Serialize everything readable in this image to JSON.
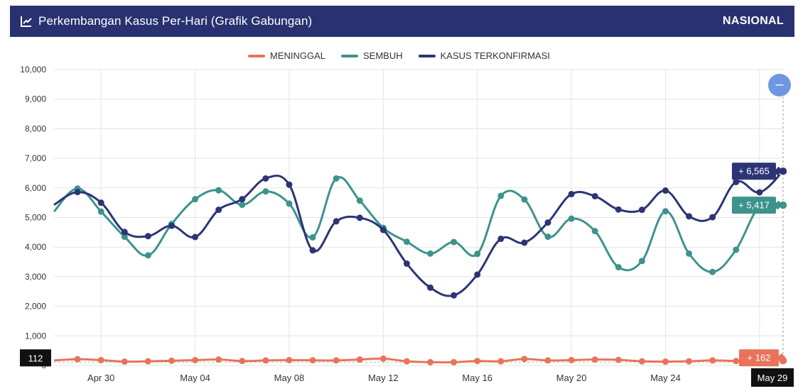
{
  "header": {
    "title": "Perkembangan Kasus Per-Hari (Grafik Gabungan)",
    "region": "NASIONAL",
    "icon": "line-chart-icon"
  },
  "zoom_button": {
    "icon": "minus-icon",
    "label": "–"
  },
  "colors": {
    "header_bg": "#283270",
    "meninggal": "#e8735a",
    "sembuh": "#3d938c",
    "kasus": "#2d3475",
    "zoom": "#6f96e3"
  },
  "chart_data": {
    "type": "line",
    "legend_position": "top-center",
    "grid": true,
    "ylim": [
      0,
      10000
    ],
    "y_ticks": [
      "0",
      "1,000",
      "2,000",
      "3,000",
      "4,000",
      "5,000",
      "6,000",
      "7,000",
      "8,000",
      "9,000",
      "10,000"
    ],
    "x_tick_labels": [
      "Apr 30",
      "May 04",
      "May 08",
      "May 12",
      "May 16",
      "May 20",
      "May 24",
      "May"
    ],
    "x_tick_dates": [
      "2021-04-30",
      "2021-05-04",
      "2021-05-08",
      "2021-05-12",
      "2021-05-16",
      "2021-05-20",
      "2021-05-24",
      "2021-05-28"
    ],
    "dates": [
      "2021-04-28",
      "2021-04-29",
      "2021-04-30",
      "2021-05-01",
      "2021-05-02",
      "2021-05-03",
      "2021-05-04",
      "2021-05-05",
      "2021-05-06",
      "2021-05-07",
      "2021-05-08",
      "2021-05-09",
      "2021-05-10",
      "2021-05-11",
      "2021-05-12",
      "2021-05-13",
      "2021-05-14",
      "2021-05-15",
      "2021-05-16",
      "2021-05-17",
      "2021-05-18",
      "2021-05-19",
      "2021-05-20",
      "2021-05-21",
      "2021-05-22",
      "2021-05-23",
      "2021-05-24",
      "2021-05-25",
      "2021-05-26",
      "2021-05-27",
      "2021-05-28",
      "2021-05-29"
    ],
    "series": [
      {
        "name": "MENINGGAL",
        "color": "#e8735a",
        "values": [
          170,
          210,
          180,
          130,
          140,
          160,
          180,
          200,
          150,
          170,
          180,
          175,
          170,
          200,
          230,
          140,
          110,
          110,
          150,
          140,
          220,
          170,
          180,
          200,
          190,
          140,
          130,
          140,
          170,
          150,
          130,
          162
        ]
      },
      {
        "name": "SEMBUH",
        "color": "#3d938c",
        "values": [
          5200,
          5980,
          5200,
          4350,
          3720,
          4780,
          5620,
          5920,
          5430,
          5880,
          5470,
          4330,
          6320,
          5570,
          4650,
          4180,
          3780,
          4170,
          3770,
          5730,
          5610,
          4350,
          4960,
          4540,
          3320,
          3530,
          5210,
          3780,
          3160,
          3910,
          5380,
          5417
        ]
      },
      {
        "name": "KASUS TERKONFIRMASI",
        "color": "#2d3475",
        "values": [
          5430,
          5860,
          5500,
          4510,
          4370,
          4720,
          4340,
          5260,
          5620,
          6320,
          6110,
          3890,
          4870,
          4990,
          4580,
          3440,
          2630,
          2370,
          3070,
          4280,
          4150,
          4830,
          5790,
          5720,
          5270,
          5260,
          5910,
          5040,
          5010,
          6200,
          5850,
          6565
        ]
      }
    ],
    "tooltips": {
      "kasus": "+ 6,565",
      "sembuh": "+ 5,417",
      "meninggal": "+ 162",
      "y_value": "112",
      "x_value": "May 29"
    }
  }
}
